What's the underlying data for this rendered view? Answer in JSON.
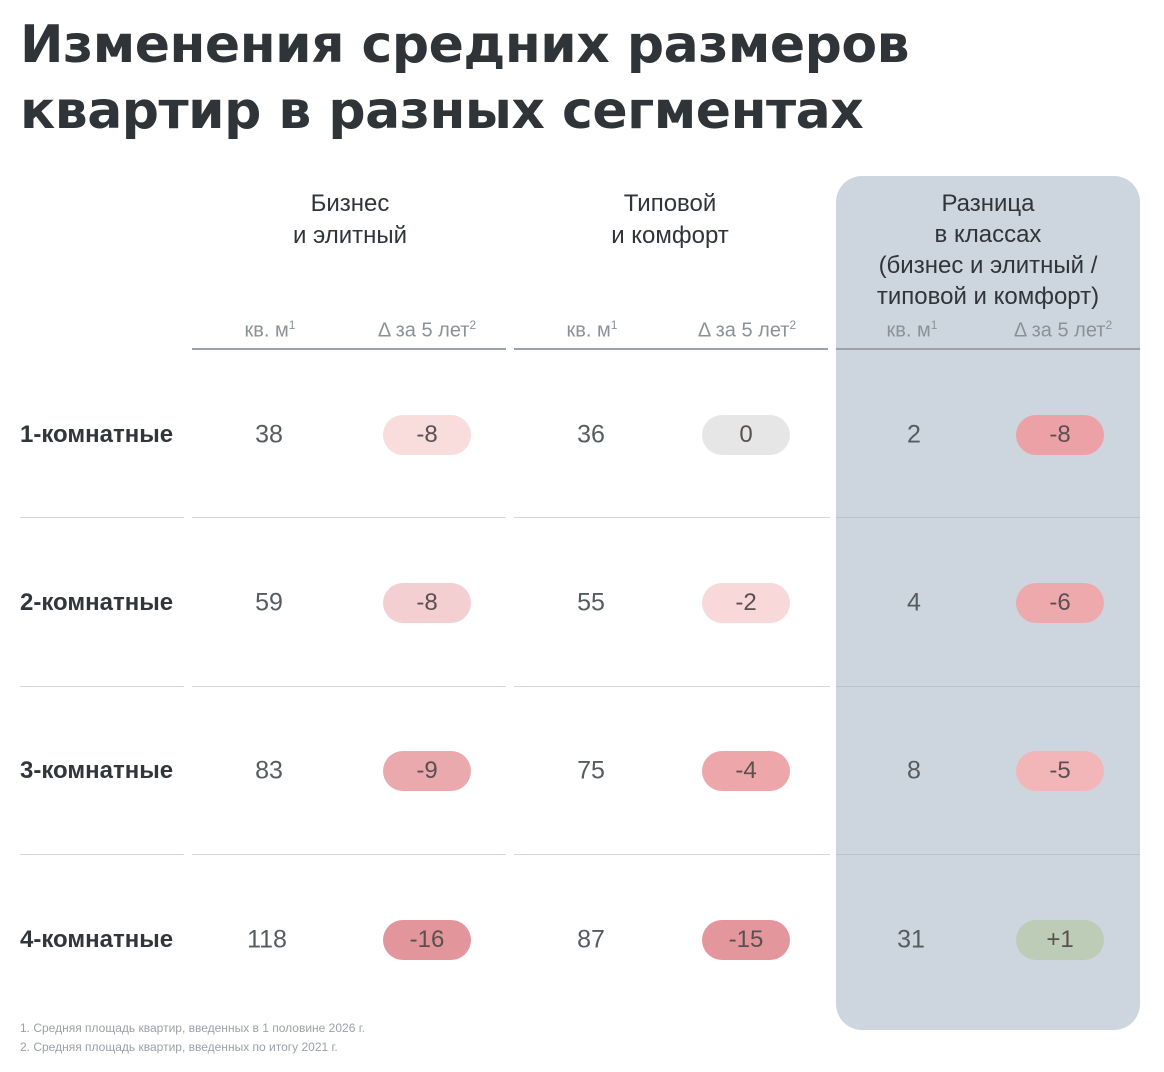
{
  "title": {
    "line1": "Изменения средних размеров",
    "line2": "квартир в разных сегментах"
  },
  "groups": [
    {
      "lines": [
        "Бизнес",
        "и элитный"
      ]
    },
    {
      "lines": [
        "Типовой",
        "и комфорт"
      ]
    },
    {
      "lines": [
        "Разница",
        "в классах",
        "(бизнес и элитный /",
        "типовой и комфорт)"
      ]
    }
  ],
  "subheaders": {
    "area": "кв. м",
    "area_sup": "1",
    "delta": "Δ за 5 лет",
    "delta_sup": "2"
  },
  "rows": [
    {
      "label": "1-комнатные",
      "biz_area": "38",
      "biz_delta": "-8",
      "std_area": "36",
      "std_delta": "0",
      "diff_area": "2",
      "diff_delta": "-8"
    },
    {
      "label": "2-комнатные",
      "biz_area": "59",
      "biz_delta": "-8",
      "std_area": "55",
      "std_delta": "-2",
      "diff_area": "4",
      "diff_delta": "-6"
    },
    {
      "label": "3-комнатные",
      "biz_area": "83",
      "biz_delta": "-9",
      "std_area": "75",
      "std_delta": "-4",
      "diff_area": "8",
      "diff_delta": "-5"
    },
    {
      "label": "4-комнатные",
      "biz_area": "118",
      "biz_delta": "-16",
      "std_area": "87",
      "std_delta": "-15",
      "diff_area": "31",
      "diff_delta": "+1"
    }
  ],
  "footnotes": [
    "1. Средняя площадь квартир, введенных в 1 половине 2026 г.",
    "2. Средняя площадь квартир, введенных по итогу 2021 г."
  ],
  "colors": {
    "panel": "#cdd6df",
    "pill_neutral": "#e6e6e6",
    "pill_light": "#f9dcdc",
    "pill_mid": "#f1c2c4",
    "pill_strong": "#e8a4a8",
    "pill_deeper": "#e29095",
    "pill_positive": "#bccbb6"
  }
}
